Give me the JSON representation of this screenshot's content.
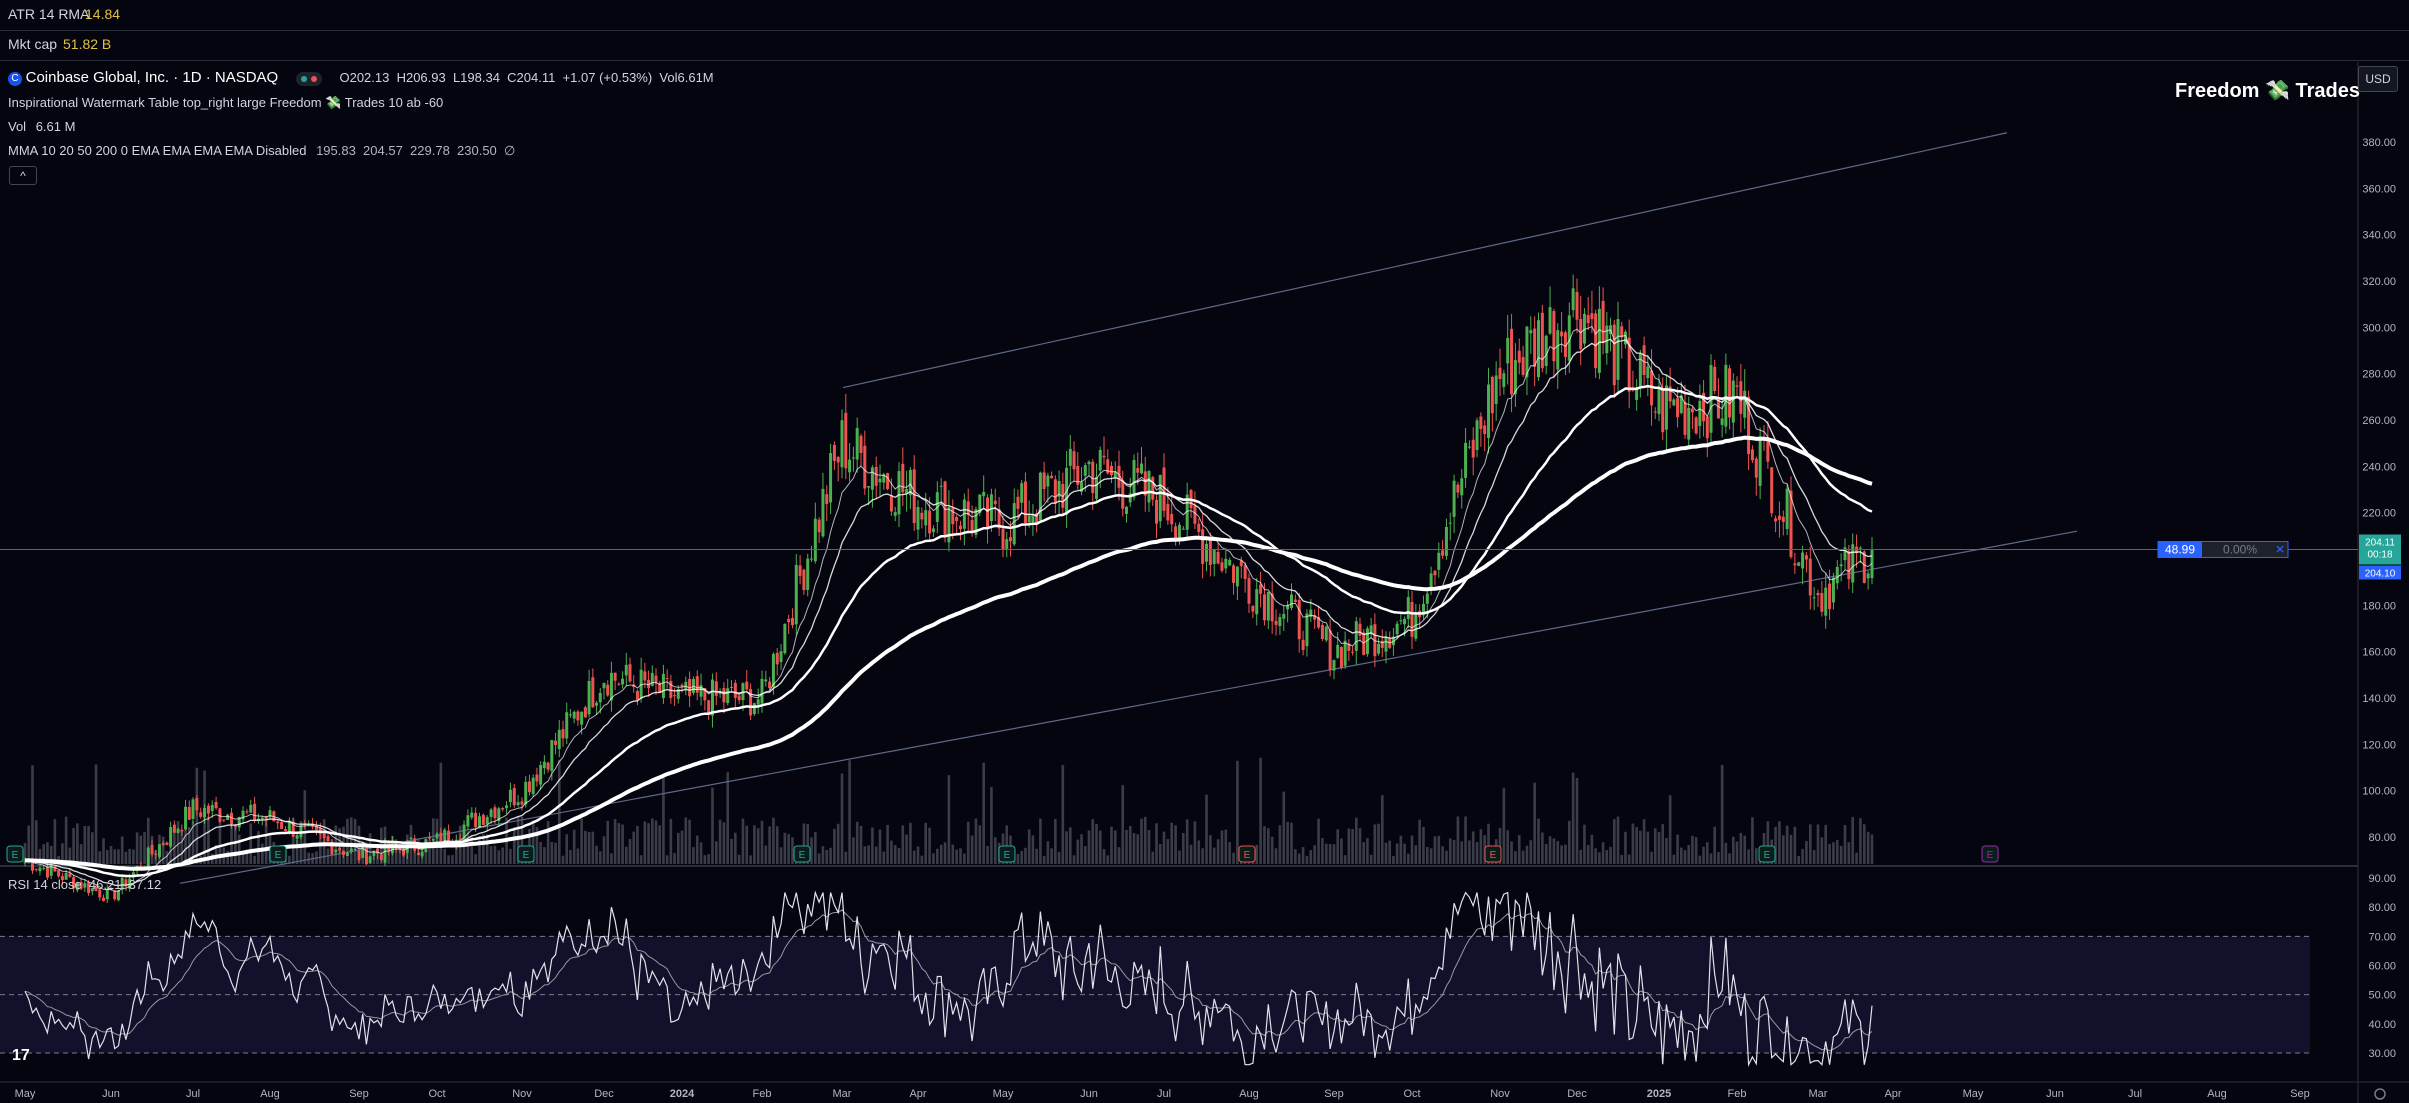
{
  "header": {
    "atr": {
      "label": "ATR 14 RMA",
      "value": "14.84"
    },
    "mktcap": {
      "label": "Mkt cap",
      "value": "51.82 B"
    }
  },
  "legend": {
    "symbol_title": "Coinbase Global, Inc. · 1D · NASDAQ",
    "ohlc": "O202.13  H206.93  L198.34  C204.11  +1.07 (+0.53%)  Vol6.61M",
    "watermark_indicator": "Inspirational Watermark Table top_right large Freedom 💸 Trades 10 ab -60",
    "vol_label": "Vol",
    "vol_value": "6.61 M",
    "mma_label": "MMA 10 20 50 200 0 EMA EMA EMA EMA Disabled",
    "mma_values": "195.83  204.57  229.78  230.50  ∅",
    "collapse": "^"
  },
  "watermark_text": "Freedom 💸 Trades",
  "currency": "USD",
  "price_axis": [
    "380.00",
    "360.00",
    "340.00",
    "320.00",
    "300.00",
    "280.00",
    "260.00",
    "240.00",
    "220.00",
    "200.00",
    "180.00",
    "160.00",
    "140.00",
    "120.00",
    "100.00",
    "80.00"
  ],
  "rsi_axis": [
    "90.00",
    "80.00",
    "70.00",
    "60.00",
    "50.00",
    "40.00",
    "30.00"
  ],
  "rsi_label": "RSI 14 close  46.21  37.12",
  "price_tags": {
    "current": "204.11",
    "countdown": "00:18",
    "line": "204.10"
  },
  "hline_box": {
    "price": "48.99",
    "pct": "0.00%",
    "close": "✕"
  },
  "time_axis": [
    "May",
    "Jun",
    "Jul",
    "Aug",
    "Sep",
    "Oct",
    "Nov",
    "Dec",
    "2024",
    "Feb",
    "Mar",
    "Apr",
    "May",
    "Jun",
    "Jul",
    "Aug",
    "Sep",
    "Oct",
    "Nov",
    "Dec",
    "2025",
    "Feb",
    "Mar",
    "Apr",
    "May",
    "Jun",
    "Jul",
    "Aug",
    "Sep"
  ],
  "earnings_markers": [
    "E",
    "E",
    "E",
    "E",
    "E",
    "E",
    "E",
    "E"
  ],
  "colors": {
    "up": "#26a69a",
    "up_bright": "#4caf50",
    "down": "#ef5350",
    "blue": "#2962ff",
    "bg": "#050510"
  },
  "chart_data": {
    "type": "candlestick",
    "title": "Coinbase Global, Inc. · 1D · NASDAQ",
    "ylim": [
      72,
      395
    ],
    "x_months": [
      "May",
      "Jun",
      "Jul",
      "Aug",
      "Sep",
      "Oct",
      "Nov",
      "Dec",
      "2024",
      "Feb",
      "Mar",
      "Apr",
      "May",
      "Jun",
      "Jul",
      "Aug",
      "Sep",
      "Oct",
      "Nov",
      "Dec",
      "2025",
      "Feb",
      "Mar",
      "Apr",
      "May",
      "Jun",
      "Jul",
      "Aug",
      "Sep"
    ],
    "close_path_by_month": [
      {
        "month": "May",
        "close": 70
      },
      {
        "month": "Jun",
        "close": 54
      },
      {
        "month": "Jul",
        "close": 92
      },
      {
        "month": "Aug",
        "close": 88
      },
      {
        "month": "Sep",
        "close": 72
      },
      {
        "month": "Oct",
        "close": 78
      },
      {
        "month": "Nov",
        "close": 100
      },
      {
        "month": "Dec",
        "close": 150
      },
      {
        "month": "2024",
        "close": 140
      },
      {
        "month": "Feb",
        "close": 140
      },
      {
        "month": "Mar",
        "close": 250
      },
      {
        "month": "Apr",
        "close": 225
      },
      {
        "month": "May",
        "close": 215
      },
      {
        "month": "Jun",
        "close": 240
      },
      {
        "month": "Jul",
        "close": 225
      },
      {
        "month": "Aug",
        "close": 190
      },
      {
        "month": "Sep",
        "close": 160
      },
      {
        "month": "Oct",
        "close": 175
      },
      {
        "month": "Nov",
        "close": 280
      },
      {
        "month": "Dec",
        "close": 310
      },
      {
        "month": "2025",
        "close": 265
      },
      {
        "month": "Feb",
        "close": 270
      },
      {
        "month": "Mar",
        "close": 185
      },
      {
        "month": "Apr",
        "close": 204.11
      }
    ],
    "channel": {
      "upper": [
        [
          -250.5,
          274
        ],
        [
          1.5,
          384
        ]
      ],
      "lower": [
        [
          -200,
          88
        ],
        [
          2.5,
          208
        ]
      ]
    },
    "horizontal_line": 204.1,
    "last_close": 204.11,
    "moving_averages": {
      "ema10": 195.83,
      "ema20": 204.57,
      "ema50": 229.78,
      "ema200": 230.5
    },
    "rsi": {
      "period": 14,
      "value": 46.21,
      "ma": 37.12,
      "upper": 70,
      "mid": 50,
      "lower": 30,
      "ylim": [
        25,
        92
      ]
    }
  }
}
